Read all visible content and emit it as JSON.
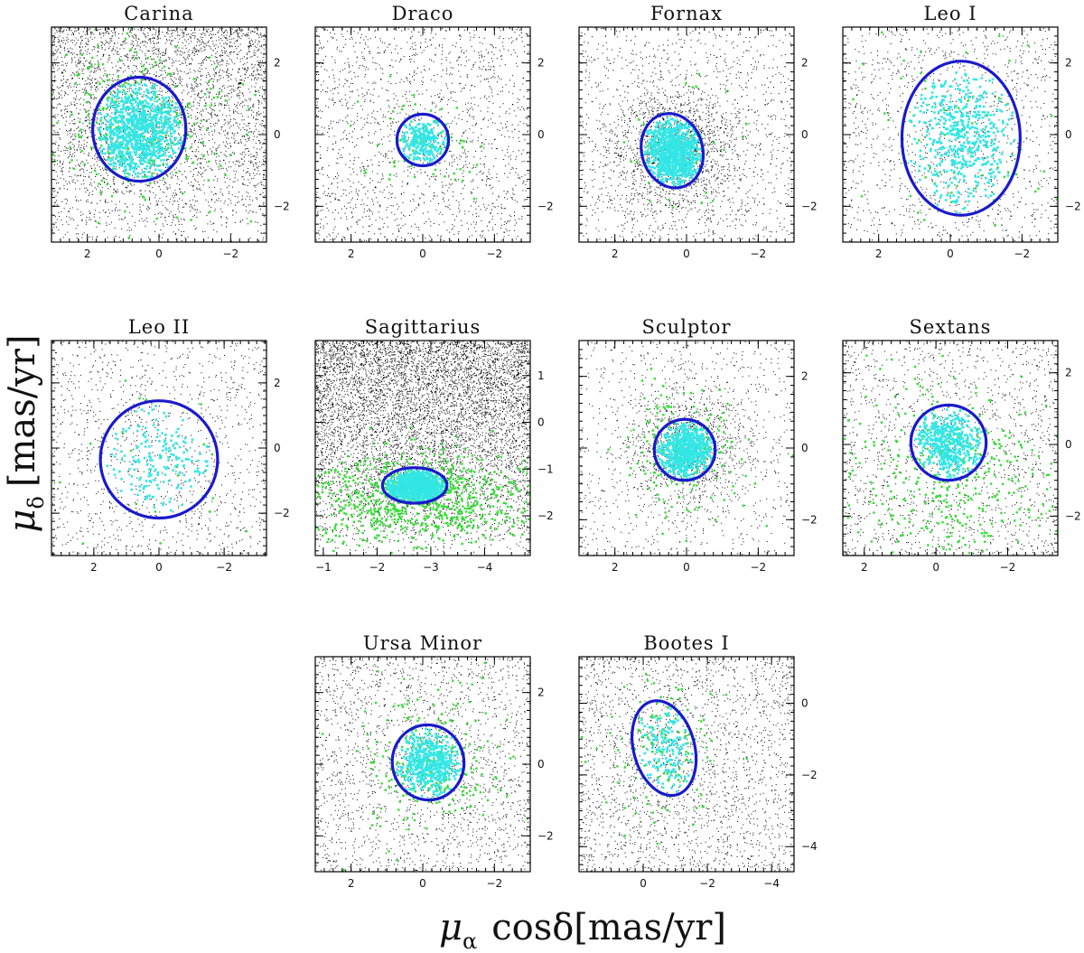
{
  "figure": {
    "ylabel_symbol": "μ",
    "ylabel_sub": "δ",
    "ylabel_unit": "[mas/yr]",
    "xlabel_symbol": "μ",
    "xlabel_sub": "α",
    "xlabel_mid": "cosδ",
    "xlabel_unit": "[mas/yr]"
  },
  "legend_colors": {
    "field": "#000000",
    "candidates": "#33dd33",
    "members": "#33e6e6",
    "ellipse": "#1a1acc"
  },
  "chart_data": [
    {
      "type": "scatter",
      "title": "Carina",
      "xlim": [
        3,
        -3
      ],
      "ylim": [
        -3,
        3
      ],
      "xticks": [
        2,
        0,
        -2
      ],
      "yticks": [
        2,
        0,
        -2
      ],
      "density": 1.0,
      "center": [
        0.6,
        0.15
      ],
      "ellipse": {
        "cx": 0.55,
        "cy": 0.15,
        "rx": 1.3,
        "ry": 1.45,
        "angle": 0
      },
      "n_field": 3600,
      "n_green": 260,
      "n_cyan": 900,
      "gradient": "top"
    },
    {
      "type": "scatter",
      "title": "Draco",
      "xlim": [
        3,
        -3
      ],
      "ylim": [
        -3,
        3
      ],
      "xticks": [
        2,
        0,
        -2
      ],
      "yticks": [
        2,
        0,
        -2
      ],
      "density": 0.5,
      "center": [
        0.0,
        -0.1
      ],
      "ellipse": {
        "cx": 0.0,
        "cy": -0.15,
        "rx": 0.72,
        "ry": 0.72,
        "angle": 0
      },
      "n_field": 1700,
      "n_green": 60,
      "n_cyan": 250,
      "gradient": "none"
    },
    {
      "type": "scatter",
      "title": "Fornax",
      "xlim": [
        3,
        -3
      ],
      "ylim": [
        -3,
        3
      ],
      "xticks": [
        2,
        0,
        -2
      ],
      "yticks": [
        2,
        0,
        -2
      ],
      "density": 0.8,
      "center": [
        0.35,
        -0.4
      ],
      "ellipse": {
        "cx": 0.4,
        "cy": -0.45,
        "rx": 0.85,
        "ry": 1.05,
        "angle": -15
      },
      "n_field": 2600,
      "n_green": 40,
      "n_cyan": 900,
      "gradient": "center"
    },
    {
      "type": "scatter",
      "title": "Leo I",
      "xlim": [
        3,
        -3
      ],
      "ylim": [
        -3,
        3
      ],
      "xticks": [
        2,
        0,
        -2
      ],
      "yticks": [
        2,
        0,
        -2
      ],
      "density": 0.35,
      "center": [
        -0.3,
        -0.1
      ],
      "ellipse": {
        "cx": -0.3,
        "cy": -0.1,
        "rx": 1.65,
        "ry": 2.15,
        "angle": 0
      },
      "n_field": 1200,
      "n_green": 70,
      "n_cyan": 500,
      "gradient": "none"
    },
    {
      "type": "scatter",
      "title": "Leo II",
      "xlim": [
        3.3,
        -3.3
      ],
      "ylim": [
        -3.3,
        3.3
      ],
      "xticks": [
        2,
        0,
        -2
      ],
      "yticks": [
        2,
        0,
        -2
      ],
      "density": 0.35,
      "center": [
        0.0,
        -0.4
      ],
      "ellipse": {
        "cx": 0.0,
        "cy": -0.35,
        "rx": 1.8,
        "ry": 1.8,
        "angle": 0
      },
      "n_field": 1200,
      "n_green": 25,
      "n_cyan": 180,
      "gradient": "none"
    },
    {
      "type": "scatter",
      "title": "Sagittarius",
      "xlim": [
        -0.85,
        -4.85
      ],
      "ylim": [
        -2.85,
        1.75
      ],
      "xticks": [
        -1,
        -2,
        -3,
        -4
      ],
      "yticks": [
        1,
        0,
        -1,
        -2
      ],
      "density": 1.6,
      "center": [
        -2.7,
        -1.35
      ],
      "ellipse": {
        "cx": -2.7,
        "cy": -1.35,
        "rx": 0.6,
        "ry": 0.38,
        "angle": 0
      },
      "n_field": 6500,
      "n_green": 900,
      "n_cyan": 900,
      "gradient": "sgr"
    },
    {
      "type": "scatter",
      "title": "Sculptor",
      "xlim": [
        3,
        -3
      ],
      "ylim": [
        -3,
        3
      ],
      "xticks": [
        2,
        0,
        -2
      ],
      "yticks": [
        2,
        0,
        -2
      ],
      "density": 0.5,
      "center": [
        0.0,
        -0.05
      ],
      "ellipse": {
        "cx": 0.05,
        "cy": -0.05,
        "rx": 0.85,
        "ry": 0.85,
        "angle": 0
      },
      "n_field": 1800,
      "n_green": 180,
      "n_cyan": 700,
      "gradient": "center"
    },
    {
      "type": "scatter",
      "title": "Sextans",
      "xlim": [
        2.6,
        -3.4
      ],
      "ylim": [
        -3.1,
        2.9
      ],
      "xticks": [
        2,
        0,
        -2
      ],
      "yticks": [
        2,
        0,
        -2
      ],
      "density": 0.45,
      "center": [
        -0.35,
        0.0
      ],
      "ellipse": {
        "cx": -0.35,
        "cy": 0.05,
        "rx": 1.05,
        "ry": 1.05,
        "angle": 0
      },
      "n_field": 1500,
      "n_green": 380,
      "n_cyan": 450,
      "gradient": "none"
    },
    {
      "type": "scatter",
      "title": "Ursa Minor",
      "xlim": [
        3,
        -3
      ],
      "ylim": [
        -3,
        3
      ],
      "xticks": [
        2,
        0,
        -2
      ],
      "yticks": [
        2,
        0,
        -2
      ],
      "density": 0.55,
      "center": [
        -0.1,
        0.0
      ],
      "ellipse": {
        "cx": -0.15,
        "cy": 0.05,
        "rx": 1.0,
        "ry": 1.05,
        "angle": -10
      },
      "n_field": 1900,
      "n_green": 220,
      "n_cyan": 500,
      "gradient": "none"
    },
    {
      "type": "scatter",
      "title": "Bootes I",
      "xlim": [
        2,
        -4.7
      ],
      "ylim": [
        -4.7,
        1.3
      ],
      "xticks": [
        0,
        -2,
        -4
      ],
      "yticks": [
        0,
        -2,
        -4
      ],
      "density": 0.6,
      "center": [
        -0.6,
        -1.2
      ],
      "ellipse": {
        "cx": -0.65,
        "cy": -1.25,
        "rx": 0.95,
        "ry": 1.35,
        "angle": -15
      },
      "n_field": 2200,
      "n_green": 120,
      "n_cyan": 150,
      "gradient": "none"
    }
  ]
}
